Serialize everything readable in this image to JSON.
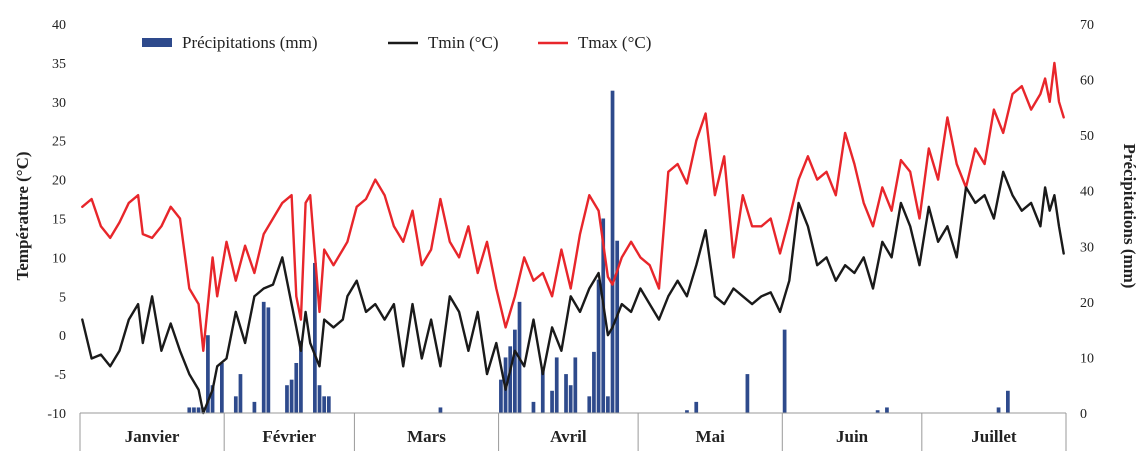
{
  "chart_data": {
    "type": "line",
    "title": "",
    "ylabel_left": "Température (°C)",
    "ylabel_right": "Précipitations (mm)",
    "ylim_left": [
      -10,
      40
    ],
    "yticks_left": [
      "40",
      "35",
      "30",
      "25",
      "20",
      "15",
      "10",
      "5",
      "0",
      "-5",
      "-10"
    ],
    "ylim_right": [
      0,
      70
    ],
    "yticks_right": [
      "70",
      "60",
      "50",
      "40",
      "30",
      "20",
      "10",
      "0"
    ],
    "xlim_days": [
      1,
      212
    ],
    "months": [
      {
        "label": "Janvier",
        "start": 1,
        "end": 31
      },
      {
        "label": "Février",
        "start": 32,
        "end": 59
      },
      {
        "label": "Mars",
        "start": 60,
        "end": 90
      },
      {
        "label": "Avril",
        "start": 91,
        "end": 120
      },
      {
        "label": "Mai",
        "start": 121,
        "end": 151
      },
      {
        "label": "Juin",
        "start": 152,
        "end": 181
      },
      {
        "label": "Juillet",
        "start": 182,
        "end": 212
      }
    ],
    "legend": [
      {
        "label": "Précipitations (mm)",
        "kind": "bar",
        "color": "#2e4a8c"
      },
      {
        "label": "Tmin (°C)",
        "kind": "line",
        "color": "#1a1a1a"
      },
      {
        "label": "Tmax (°C)",
        "kind": "line",
        "color": "#e8262b"
      }
    ],
    "series": [
      {
        "name": "Tmax (°C)",
        "axis": "left",
        "color": "#e8262b",
        "points": [
          [
            1,
            16.5
          ],
          [
            3,
            17.5
          ],
          [
            5,
            14
          ],
          [
            7,
            12.5
          ],
          [
            9,
            14.5
          ],
          [
            11,
            17
          ],
          [
            13,
            18
          ],
          [
            14,
            13
          ],
          [
            16,
            12.5
          ],
          [
            18,
            14
          ],
          [
            20,
            16.5
          ],
          [
            22,
            15
          ],
          [
            24,
            6
          ],
          [
            26,
            4
          ],
          [
            27,
            -2
          ],
          [
            29,
            10
          ],
          [
            30,
            5
          ],
          [
            32,
            12
          ],
          [
            34,
            7
          ],
          [
            36,
            11.5
          ],
          [
            38,
            8
          ],
          [
            40,
            13
          ],
          [
            42,
            15
          ],
          [
            44,
            17
          ],
          [
            46,
            18
          ],
          [
            47,
            5
          ],
          [
            48,
            2
          ],
          [
            49,
            17
          ],
          [
            50,
            18
          ],
          [
            52,
            3
          ],
          [
            53,
            11
          ],
          [
            55,
            9
          ],
          [
            57,
            11
          ],
          [
            58,
            12
          ],
          [
            60,
            16.5
          ],
          [
            62,
            17.5
          ],
          [
            64,
            20
          ],
          [
            66,
            18
          ],
          [
            68,
            14
          ],
          [
            70,
            12
          ],
          [
            72,
            16
          ],
          [
            74,
            9
          ],
          [
            76,
            11
          ],
          [
            78,
            17.5
          ],
          [
            80,
            12
          ],
          [
            82,
            10
          ],
          [
            84,
            14
          ],
          [
            86,
            8
          ],
          [
            88,
            12
          ],
          [
            90,
            6
          ],
          [
            92,
            1
          ],
          [
            94,
            5
          ],
          [
            96,
            10
          ],
          [
            98,
            7
          ],
          [
            100,
            8
          ],
          [
            102,
            5
          ],
          [
            104,
            11
          ],
          [
            106,
            6
          ],
          [
            108,
            13
          ],
          [
            110,
            18
          ],
          [
            112,
            16
          ],
          [
            114,
            7.5
          ],
          [
            115,
            6.5
          ],
          [
            117,
            10
          ],
          [
            119,
            12
          ],
          [
            121,
            10
          ],
          [
            123,
            9
          ],
          [
            125,
            6
          ],
          [
            127,
            21
          ],
          [
            129,
            22
          ],
          [
            131,
            19.5
          ],
          [
            133,
            25
          ],
          [
            135,
            28.5
          ],
          [
            137,
            18
          ],
          [
            139,
            23
          ],
          [
            141,
            10
          ],
          [
            143,
            18
          ],
          [
            145,
            14
          ],
          [
            147,
            14
          ],
          [
            149,
            15
          ],
          [
            151,
            10.5
          ],
          [
            153,
            15
          ],
          [
            155,
            20
          ],
          [
            157,
            23
          ],
          [
            159,
            20
          ],
          [
            161,
            21
          ],
          [
            163,
            18
          ],
          [
            165,
            26
          ],
          [
            167,
            22
          ],
          [
            169,
            17
          ],
          [
            171,
            14
          ],
          [
            173,
            19
          ],
          [
            175,
            16
          ],
          [
            177,
            22.5
          ],
          [
            179,
            21
          ],
          [
            181,
            15
          ],
          [
            183,
            24
          ],
          [
            185,
            20
          ],
          [
            187,
            28
          ],
          [
            189,
            22
          ],
          [
            191,
            19
          ],
          [
            193,
            24
          ],
          [
            195,
            22
          ],
          [
            197,
            29
          ],
          [
            199,
            26
          ],
          [
            201,
            31
          ],
          [
            203,
            32
          ],
          [
            205,
            29
          ],
          [
            207,
            31
          ],
          [
            208,
            33
          ],
          [
            209,
            30
          ],
          [
            210,
            35
          ],
          [
            211,
            30
          ],
          [
            212,
            28
          ]
        ]
      },
      {
        "name": "Tmin (°C)",
        "axis": "left",
        "color": "#1a1a1a",
        "points": [
          [
            1,
            2
          ],
          [
            3,
            -3
          ],
          [
            5,
            -2.5
          ],
          [
            7,
            -4
          ],
          [
            9,
            -2
          ],
          [
            11,
            2
          ],
          [
            13,
            4
          ],
          [
            14,
            -1
          ],
          [
            16,
            5
          ],
          [
            18,
            -2
          ],
          [
            20,
            1.5
          ],
          [
            22,
            -2
          ],
          [
            24,
            -5
          ],
          [
            26,
            -7
          ],
          [
            27,
            -10
          ],
          [
            29,
            -7
          ],
          [
            30,
            -4
          ],
          [
            32,
            -3
          ],
          [
            34,
            3
          ],
          [
            36,
            -1
          ],
          [
            38,
            5
          ],
          [
            40,
            6
          ],
          [
            42,
            6.5
          ],
          [
            44,
            10
          ],
          [
            46,
            4
          ],
          [
            47,
            1
          ],
          [
            48,
            -2
          ],
          [
            49,
            3
          ],
          [
            50,
            -1
          ],
          [
            52,
            -4
          ],
          [
            53,
            2
          ],
          [
            55,
            1
          ],
          [
            57,
            2
          ],
          [
            58,
            5
          ],
          [
            60,
            7
          ],
          [
            62,
            3
          ],
          [
            64,
            4
          ],
          [
            66,
            2
          ],
          [
            68,
            4
          ],
          [
            70,
            -4
          ],
          [
            72,
            4
          ],
          [
            74,
            -3
          ],
          [
            76,
            2
          ],
          [
            78,
            -4
          ],
          [
            80,
            5
          ],
          [
            82,
            3
          ],
          [
            84,
            -2
          ],
          [
            86,
            3
          ],
          [
            88,
            -5
          ],
          [
            90,
            -1
          ],
          [
            92,
            -7
          ],
          [
            94,
            -2
          ],
          [
            96,
            -4
          ],
          [
            98,
            2
          ],
          [
            100,
            -5
          ],
          [
            102,
            1
          ],
          [
            104,
            -2
          ],
          [
            106,
            5
          ],
          [
            108,
            3
          ],
          [
            110,
            6
          ],
          [
            112,
            8
          ],
          [
            114,
            0
          ],
          [
            115,
            1
          ],
          [
            117,
            4
          ],
          [
            119,
            3
          ],
          [
            121,
            6
          ],
          [
            123,
            4
          ],
          [
            125,
            2
          ],
          [
            127,
            5
          ],
          [
            129,
            7
          ],
          [
            131,
            5
          ],
          [
            133,
            9
          ],
          [
            135,
            13.5
          ],
          [
            137,
            5
          ],
          [
            139,
            4
          ],
          [
            141,
            6
          ],
          [
            143,
            5
          ],
          [
            145,
            4
          ],
          [
            147,
            5
          ],
          [
            149,
            5.5
          ],
          [
            151,
            3
          ],
          [
            153,
            7
          ],
          [
            155,
            17
          ],
          [
            157,
            14
          ],
          [
            159,
            9
          ],
          [
            161,
            10
          ],
          [
            163,
            7
          ],
          [
            165,
            9
          ],
          [
            167,
            8
          ],
          [
            169,
            10
          ],
          [
            171,
            6
          ],
          [
            173,
            12
          ],
          [
            175,
            10
          ],
          [
            177,
            17
          ],
          [
            179,
            14
          ],
          [
            181,
            9
          ],
          [
            183,
            16.5
          ],
          [
            185,
            12
          ],
          [
            187,
            14
          ],
          [
            189,
            10
          ],
          [
            191,
            19
          ],
          [
            193,
            17
          ],
          [
            195,
            18
          ],
          [
            197,
            15
          ],
          [
            199,
            21
          ],
          [
            201,
            18
          ],
          [
            203,
            16
          ],
          [
            205,
            17
          ],
          [
            207,
            14
          ],
          [
            208,
            19
          ],
          [
            209,
            16
          ],
          [
            210,
            18
          ],
          [
            211,
            14
          ],
          [
            212,
            10.5
          ]
        ]
      },
      {
        "name": "Précipitations (mm)",
        "axis": "right",
        "color": "#2e4a8c",
        "type": "bar",
        "points": [
          [
            24,
            1
          ],
          [
            25,
            1
          ],
          [
            26,
            1
          ],
          [
            27,
            1
          ],
          [
            28,
            14
          ],
          [
            29,
            5
          ],
          [
            31,
            9
          ],
          [
            34,
            3
          ],
          [
            35,
            7
          ],
          [
            38,
            2
          ],
          [
            40,
            20
          ],
          [
            41,
            19
          ],
          [
            45,
            5
          ],
          [
            46,
            6
          ],
          [
            47,
            9
          ],
          [
            48,
            13
          ],
          [
            51,
            27
          ],
          [
            52,
            5
          ],
          [
            53,
            3
          ],
          [
            54,
            3
          ],
          [
            78,
            1
          ],
          [
            91,
            6
          ],
          [
            92,
            10
          ],
          [
            93,
            12
          ],
          [
            94,
            15
          ],
          [
            95,
            20
          ],
          [
            98,
            2
          ],
          [
            100,
            8
          ],
          [
            102,
            4
          ],
          [
            103,
            10
          ],
          [
            105,
            7
          ],
          [
            106,
            5
          ],
          [
            107,
            10
          ],
          [
            110,
            3
          ],
          [
            111,
            11
          ],
          [
            112,
            24
          ],
          [
            113,
            35
          ],
          [
            114,
            3
          ],
          [
            115,
            58
          ],
          [
            116,
            31
          ],
          [
            131,
            0.5
          ],
          [
            133,
            2
          ],
          [
            144,
            7
          ],
          [
            152,
            15
          ],
          [
            172,
            0.5
          ],
          [
            174,
            1
          ],
          [
            198,
            1
          ],
          [
            200,
            4
          ]
        ]
      }
    ]
  }
}
